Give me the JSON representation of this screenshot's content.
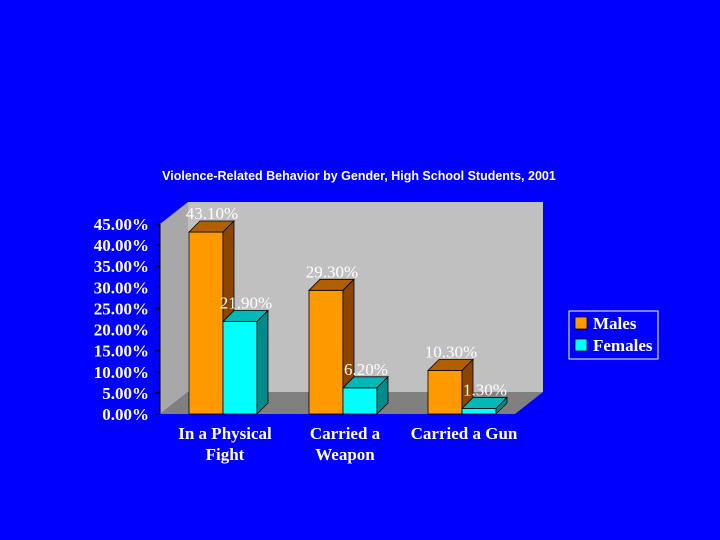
{
  "chart_data": {
    "type": "bar",
    "title": "Violence-Related Behavior by Gender, High School Students, 2001",
    "xlabel": "",
    "ylabel": "",
    "categories": [
      "In a Physical Fight",
      "Carried a Weapon",
      "Carried a Gun"
    ],
    "category_lines": [
      [
        "In a Physical",
        "Fight"
      ],
      [
        "Carried a",
        "Weapon"
      ],
      [
        "Carried a Gun"
      ]
    ],
    "series": [
      {
        "name": "Males",
        "values": [
          43.1,
          29.3,
          10.3
        ],
        "labels": [
          "43.10%",
          "29.30%",
          "10.30%"
        ],
        "color": "#ff9900",
        "side": "#8b4500",
        "top": "#b06000"
      },
      {
        "name": "Females",
        "values": [
          21.9,
          6.2,
          1.3
        ],
        "labels": [
          "21.90%",
          "6.20%",
          "1.30%"
        ],
        "color": "#00ffff",
        "side": "#008b8b",
        "top": "#00b8b8"
      }
    ],
    "ylim": [
      0,
      45
    ],
    "yticks": [
      "0.00%",
      "5.00%",
      "10.00%",
      "15.00%",
      "20.00%",
      "25.00%",
      "30.00%",
      "35.00%",
      "40.00%",
      "45.00%"
    ],
    "ytick_values": [
      0,
      5,
      10,
      15,
      20,
      25,
      30,
      35,
      40,
      45
    ],
    "legend_position": "right",
    "grid": false,
    "three_d": true,
    "colors": {
      "background": "#0000ff",
      "plot_wall": "#c0c0c0",
      "floor": "#808080",
      "text": "#ffffff"
    }
  }
}
